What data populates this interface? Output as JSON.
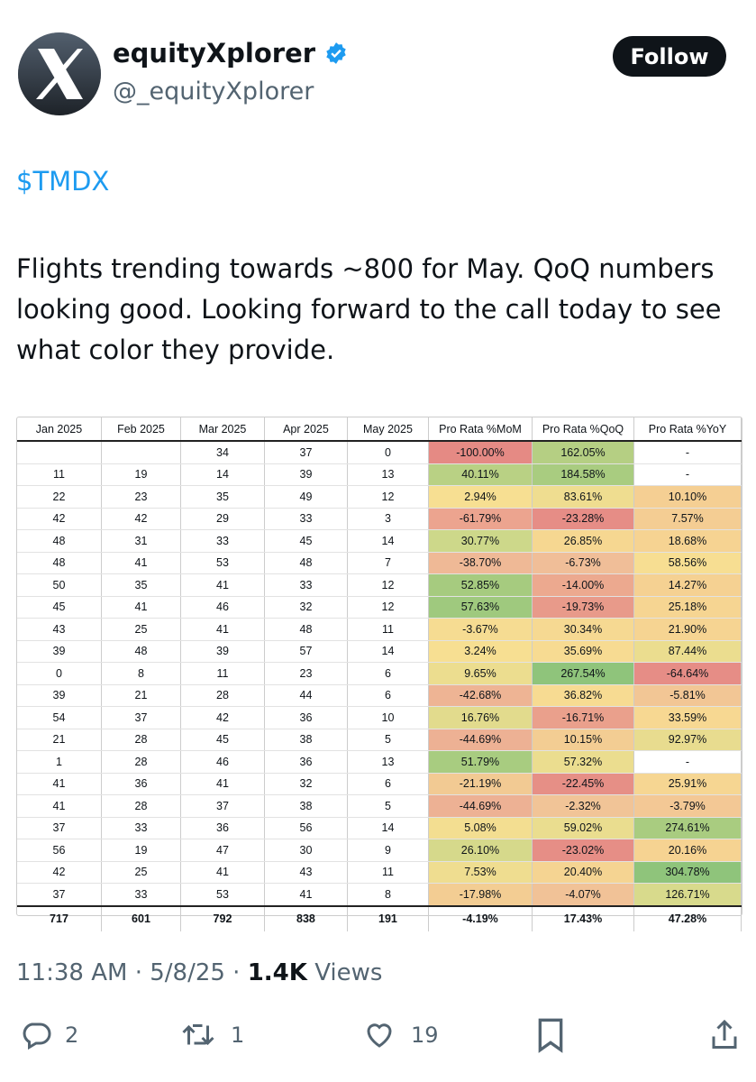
{
  "header": {
    "name": "equityXplorer",
    "handle": "@_equityXplorer",
    "button": "Follow"
  },
  "post": {
    "cashtag": "$TMDX",
    "text": "Flights trending towards ~800 for May.  QoQ numbers looking good.  Looking forward to the call today to see what color they provide."
  },
  "table": {
    "columns": [
      "Jan 2025",
      "Feb 2025",
      "Mar 2025",
      "Apr 2025",
      "May 2025",
      "Pro Rata %MoM",
      "Pro Rata %QoQ",
      "Pro Rata %YoY"
    ],
    "rows": [
      [
        null,
        null,
        34,
        37,
        0,
        "-100.00%",
        "162.05%",
        "-"
      ],
      [
        11,
        19,
        14,
        39,
        13,
        "40.11%",
        "184.58%",
        "-"
      ],
      [
        22,
        23,
        35,
        49,
        12,
        "2.94%",
        "83.61%",
        "10.10%"
      ],
      [
        42,
        42,
        29,
        33,
        3,
        "-61.79%",
        "-23.28%",
        "7.57%"
      ],
      [
        48,
        31,
        33,
        45,
        14,
        "30.77%",
        "26.85%",
        "18.68%"
      ],
      [
        48,
        41,
        53,
        48,
        7,
        "-38.70%",
        "-6.73%",
        "58.56%"
      ],
      [
        50,
        35,
        41,
        33,
        12,
        "52.85%",
        "-14.00%",
        "14.27%"
      ],
      [
        45,
        41,
        46,
        32,
        12,
        "57.63%",
        "-19.73%",
        "25.18%"
      ],
      [
        43,
        25,
        41,
        48,
        11,
        "-3.67%",
        "30.34%",
        "21.90%"
      ],
      [
        39,
        48,
        39,
        57,
        14,
        "3.24%",
        "35.69%",
        "87.44%"
      ],
      [
        0,
        8,
        11,
        23,
        6,
        "9.65%",
        "267.54%",
        "-64.64%"
      ],
      [
        39,
        21,
        28,
        44,
        6,
        "-42.68%",
        "36.82%",
        "-5.81%"
      ],
      [
        54,
        37,
        42,
        36,
        10,
        "16.76%",
        "-16.71%",
        "33.59%"
      ],
      [
        21,
        28,
        45,
        38,
        5,
        "-44.69%",
        "10.15%",
        "92.97%"
      ],
      [
        1,
        28,
        46,
        36,
        13,
        "51.79%",
        "57.32%",
        "-"
      ],
      [
        41,
        36,
        41,
        32,
        6,
        "-21.19%",
        "-22.45%",
        "25.91%"
      ],
      [
        41,
        28,
        37,
        38,
        5,
        "-44.69%",
        "-2.32%",
        "-3.79%"
      ],
      [
        37,
        33,
        36,
        56,
        14,
        "5.08%",
        "59.02%",
        "274.61%"
      ],
      [
        56,
        19,
        47,
        30,
        9,
        "26.10%",
        "-23.02%",
        "20.16%"
      ],
      [
        42,
        25,
        41,
        43,
        11,
        "7.53%",
        "20.40%",
        "304.78%"
      ],
      [
        37,
        33,
        53,
        41,
        8,
        "-17.98%",
        "-4.07%",
        "126.71%"
      ]
    ],
    "row_colors": [
      [
        "#e58a84",
        "#b5cf83",
        "#ffffff"
      ],
      [
        "#b9d184",
        "#a9cc80",
        "#ffffff"
      ],
      [
        "#f7df92",
        "#efdd90",
        "#f5cf93"
      ],
      [
        "#eca48f",
        "#e68d86",
        "#f4cd93"
      ],
      [
        "#cdd88a",
        "#f6d791",
        "#f6d392"
      ],
      [
        "#efb996",
        "#f0be98",
        "#f7de92"
      ],
      [
        "#a6cb7f",
        "#eca98f",
        "#f5d192"
      ],
      [
        "#9fc97e",
        "#e89a8a",
        "#f6d592"
      ],
      [
        "#f6dc92",
        "#f6d992",
        "#f6d492"
      ],
      [
        "#f7df92",
        "#f7db92",
        "#ebdd8f"
      ],
      [
        "#ecdd8f",
        "#8fc47b",
        "#e68d86"
      ],
      [
        "#eeb494",
        "#f7db92",
        "#f2c695"
      ],
      [
        "#e2db8d",
        "#eaa08c",
        "#f7d892"
      ],
      [
        "#edb194",
        "#f3cd93",
        "#e8dc8f"
      ],
      [
        "#a8cc80",
        "#ebdd8f",
        "#ffffff"
      ],
      [
        "#f2ca93",
        "#e68f86",
        "#f6d692"
      ],
      [
        "#edb194",
        "#f1c497",
        "#f3c895"
      ],
      [
        "#f3de91",
        "#eadd8f",
        "#a9cc80"
      ],
      [
        "#d6d98b",
        "#e68e86",
        "#f6d392"
      ],
      [
        "#efdd90",
        "#f5d492",
        "#8fc47b"
      ],
      [
        "#f3cd93",
        "#f1c297",
        "#d8da8c"
      ]
    ],
    "totals": [
      717,
      601,
      792,
      838,
      191,
      "-4.19%",
      "17.43%",
      "47.28%"
    ]
  },
  "footer": {
    "time": "11:38 AM",
    "separator": "·",
    "date": "5/8/25",
    "views_count": "1.4K",
    "views_label": "Views"
  },
  "actions": {
    "replies": 2,
    "reposts": 1,
    "likes": 19
  }
}
